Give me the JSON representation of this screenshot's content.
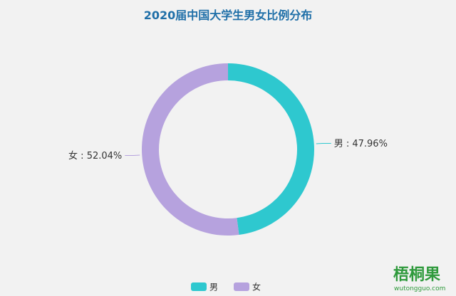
{
  "chart_data": {
    "type": "pie",
    "variant": "donut",
    "title": "2020届中国大学生男女比例分布",
    "categories": [
      "男",
      "女"
    ],
    "values": [
      47.96,
      52.04
    ],
    "unit": "%",
    "slice_labels": [
      "男 : 47.96%",
      "女 : 52.04%"
    ],
    "colors": [
      "#2ec8cf",
      "#b6a2de"
    ],
    "legend": {
      "placement": "bottom-center",
      "entries": [
        "男",
        "女"
      ]
    },
    "start": "top-clockwise"
  },
  "watermark": {
    "text": "梧桐果",
    "subtext": "wutongguo.com",
    "color": "#2f9a3c"
  },
  "background": "#f2f2f2"
}
